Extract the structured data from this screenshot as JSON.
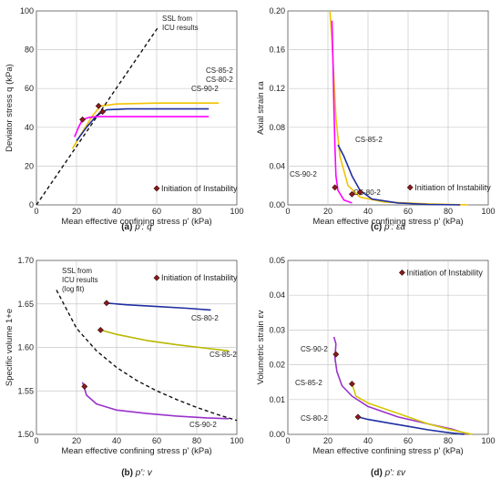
{
  "chart_data": [
    {
      "id": "a",
      "type": "line",
      "caption_label": "(a)",
      "caption_text": "p′: q",
      "xlabel": "Mean effective confining stress  p' (kPa)",
      "ylabel": "Deviator stress  q (kPa)",
      "xlim": [
        0,
        100
      ],
      "ylim": [
        0,
        100
      ],
      "xticks": [
        0,
        20,
        40,
        60,
        80,
        100
      ],
      "yticks": [
        0,
        20,
        40,
        60,
        80,
        100
      ],
      "xtick_labels": [
        "0",
        "20",
        "40",
        "60",
        "80",
        "100"
      ],
      "ytick_labels": [
        "0",
        "20",
        "40",
        "60",
        "80",
        "100"
      ],
      "grid": true,
      "legend": {
        "label": "Initiation of Instability",
        "position": "lower-right"
      },
      "series": [
        {
          "name": "CS-85-2",
          "color": "#f2c200",
          "style": "solid",
          "x": [
            18,
            22,
            28,
            32,
            40,
            60,
            80,
            91
          ],
          "y": [
            29,
            36,
            46,
            51,
            52,
            52.5,
            52.5,
            52.5
          ]
        },
        {
          "name": "CS-80-2",
          "color": "#1f2fa0",
          "style": "solid",
          "x": [
            20,
            25,
            30,
            35,
            45,
            60,
            75,
            86
          ],
          "y": [
            33,
            40,
            46,
            49,
            49.5,
            49.5,
            49.5,
            49.5
          ]
        },
        {
          "name": "CS-90-2",
          "color": "#ff00ff",
          "style": "solid",
          "x": [
            19,
            21,
            23,
            26,
            30,
            40,
            60,
            80,
            86
          ],
          "y": [
            35,
            40,
            44,
            45,
            45.5,
            45.5,
            45.5,
            45.5,
            45.5
          ]
        },
        {
          "name": "SSL from ICU results",
          "color": "#111111",
          "style": "dashed",
          "x": [
            0,
            61
          ],
          "y": [
            0,
            92
          ]
        }
      ],
      "instability_points": [
        {
          "x": 23,
          "y": 44
        },
        {
          "x": 31,
          "y": 51
        },
        {
          "x": 33,
          "y": 48
        },
        {
          "x": 60,
          "y": 8.5
        }
      ]
    },
    {
      "id": "c",
      "type": "line",
      "caption_label": "(c)",
      "caption_text": "p′: εa",
      "xlabel": "Mean effective confining stress  p' (kPa)",
      "ylabel": "Axial strain  εa",
      "xlim": [
        0,
        100
      ],
      "ylim": [
        0,
        0.2
      ],
      "xticks": [
        0,
        20,
        40,
        60,
        80,
        100
      ],
      "yticks": [
        0,
        0.04,
        0.08,
        0.12,
        0.16,
        0.2
      ],
      "xtick_labels": [
        "0",
        "20",
        "40",
        "60",
        "80",
        "100"
      ],
      "ytick_labels": [
        "0.00",
        "0.04",
        "0.08",
        "0.12",
        "0.16",
        "0.20"
      ],
      "grid": true,
      "legend": {
        "label": "Initiation of Instability",
        "position": "middle-right"
      },
      "series": [
        {
          "name": "CS-85-2",
          "color": "#f2c200",
          "style": "solid",
          "x": [
            21,
            22,
            23,
            24,
            26,
            30,
            36,
            48,
            70,
            90
          ],
          "y": [
            0.2,
            0.17,
            0.13,
            0.09,
            0.05,
            0.02,
            0.008,
            0.003,
            0.001,
            0
          ]
        },
        {
          "name": "CS-80-2",
          "color": "#1f2fa0",
          "style": "solid",
          "x": [
            25,
            28,
            32,
            36,
            42,
            55,
            70,
            86
          ],
          "y": [
            0.062,
            0.05,
            0.03,
            0.015,
            0.006,
            0.002,
            0.0005,
            0
          ]
        },
        {
          "name": "CS-90-2",
          "color": "#ff00ff",
          "style": "solid",
          "x": [
            22,
            22.5,
            23,
            23.5,
            24,
            25,
            28,
            32
          ],
          "y": [
            0.19,
            0.15,
            0.1,
            0.06,
            0.03,
            0.015,
            0.005,
            0.002
          ]
        }
      ],
      "instability_points": [
        {
          "x": 23.5,
          "y": 0.018
        },
        {
          "x": 32,
          "y": 0.011
        },
        {
          "x": 36,
          "y": 0.013
        },
        {
          "x": 61,
          "y": 0.018
        }
      ]
    },
    {
      "id": "b",
      "type": "line",
      "caption_label": "(b)",
      "caption_text": "p′: v",
      "xlabel": "Mean effective confining stress  p' (kPa)",
      "ylabel": "Specific volume  1+e",
      "xlim": [
        0,
        100
      ],
      "ylim": [
        1.5,
        1.7
      ],
      "xticks": [
        0,
        20,
        40,
        60,
        80,
        100
      ],
      "yticks": [
        1.5,
        1.55,
        1.6,
        1.65,
        1.7
      ],
      "xtick_labels": [
        "0",
        "20",
        "40",
        "60",
        "80",
        "100"
      ],
      "ytick_labels": [
        "1.50",
        "1.55",
        "1.60",
        "1.65",
        "1.70"
      ],
      "grid": true,
      "legend": {
        "label": "Initiation of Instability",
        "position": "top-right"
      },
      "series": [
        {
          "name": "CS-80-2",
          "color": "#1f2fa0",
          "style": "solid",
          "x": [
            35,
            45,
            60,
            75,
            87
          ],
          "y": [
            1.651,
            1.649,
            1.647,
            1.645,
            1.643
          ]
        },
        {
          "name": "CS-85-2",
          "color": "#b8b800",
          "style": "solid",
          "x": [
            32,
            40,
            55,
            70,
            85,
            96
          ],
          "y": [
            1.62,
            1.615,
            1.608,
            1.603,
            1.599,
            1.596
          ]
        },
        {
          "name": "CS-90-2",
          "color": "#9932cc",
          "style": "solid",
          "x": [
            23,
            25,
            30,
            40,
            55,
            70,
            85,
            96
          ],
          "y": [
            1.56,
            1.545,
            1.535,
            1.528,
            1.524,
            1.521,
            1.519,
            1.518
          ]
        },
        {
          "name": "SSL from ICU results (log fit)",
          "color": "#111111",
          "style": "dashed",
          "x": [
            10,
            20,
            30,
            40,
            50,
            60,
            70,
            80,
            90,
            100
          ],
          "y": [
            1.666,
            1.622,
            1.596,
            1.577,
            1.562,
            1.55,
            1.54,
            1.531,
            1.523,
            1.516
          ]
        }
      ],
      "instability_points": [
        {
          "x": 35,
          "y": 1.651
        },
        {
          "x": 32,
          "y": 1.62
        },
        {
          "x": 24,
          "y": 1.555
        },
        {
          "x": 60,
          "y": 1.68
        }
      ]
    },
    {
      "id": "d",
      "type": "line",
      "caption_label": "(d)",
      "caption_text": "p′: εv",
      "xlabel": "Mean effective confining stress  p' (kPa)",
      "ylabel": "Volumetric strain  εv",
      "xlim": [
        0,
        100
      ],
      "ylim": [
        0,
        0.05
      ],
      "xticks": [
        0,
        20,
        40,
        60,
        80,
        100
      ],
      "yticks": [
        0,
        0.01,
        0.02,
        0.03,
        0.04,
        0.05
      ],
      "xtick_labels": [
        "0",
        "20",
        "40",
        "60",
        "80",
        "100"
      ],
      "ytick_labels": [
        "0.00",
        "0.01",
        "0.02",
        "0.03",
        "0.04",
        "0.05"
      ],
      "grid": true,
      "legend": {
        "label": "Initiation of Instability",
        "position": "top-right"
      },
      "series": [
        {
          "name": "CS-90-2",
          "color": "#9932cc",
          "style": "solid",
          "x": [
            23,
            24,
            23.5,
            24.5,
            27,
            32,
            40,
            55,
            70,
            82,
            90
          ],
          "y": [
            0.028,
            0.026,
            0.022,
            0.018,
            0.014,
            0.011,
            0.008,
            0.005,
            0.003,
            0.0015,
            0
          ]
        },
        {
          "name": "CS-85-2",
          "color": "#d4c800",
          "style": "solid",
          "x": [
            32,
            34,
            40,
            50,
            60,
            70,
            80,
            92
          ],
          "y": [
            0.0145,
            0.011,
            0.009,
            0.007,
            0.005,
            0.003,
            0.0015,
            0
          ]
        },
        {
          "name": "CS-80-2",
          "color": "#1f2fa0",
          "style": "solid",
          "x": [
            35,
            40,
            50,
            60,
            70,
            80,
            88
          ],
          "y": [
            0.005,
            0.0043,
            0.0033,
            0.0023,
            0.0013,
            0.0005,
            0
          ]
        }
      ],
      "instability_points": [
        {
          "x": 24,
          "y": 0.023
        },
        {
          "x": 32,
          "y": 0.0145
        },
        {
          "x": 35,
          "y": 0.005
        },
        {
          "x": 57,
          "y": 0.0465
        }
      ]
    }
  ]
}
